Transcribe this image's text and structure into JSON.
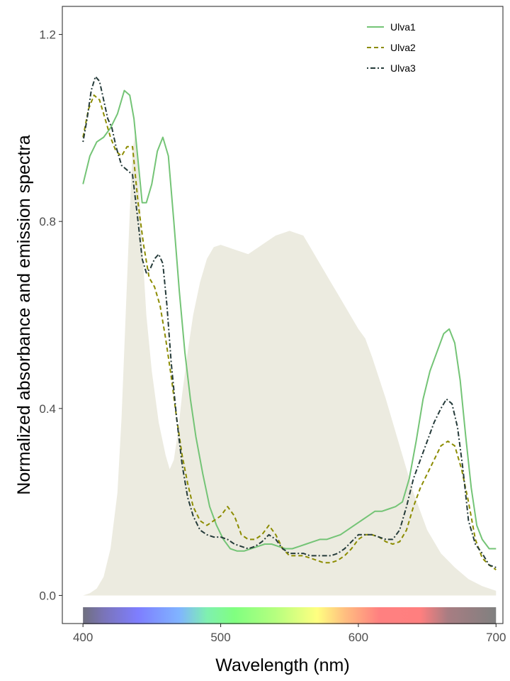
{
  "chart_data": {
    "type": "line",
    "xlabel": "Wavelength (nm)",
    "ylabel": "Normalized absorbance and emission spectra",
    "xlim": [
      385,
      705
    ],
    "ylim": [
      -0.06,
      1.26
    ],
    "x_ticks": [
      400,
      500,
      600,
      700
    ],
    "y_ticks": [
      0.0,
      0.4,
      0.8,
      1.2
    ],
    "x_tick_labels": [
      "400",
      "500",
      "600",
      "700"
    ],
    "y_tick_labels": [
      "0.0",
      "0.4",
      "0.8",
      "1.2"
    ],
    "grid": false,
    "legend_position": "top-right",
    "emission_spectrum": {
      "color": "#ecebe0",
      "x": [
        400,
        405,
        410,
        415,
        420,
        425,
        428,
        431,
        434,
        436,
        438,
        440,
        443,
        446,
        450,
        455,
        460,
        463,
        466,
        469,
        472,
        476,
        480,
        485,
        490,
        495,
        500,
        505,
        510,
        515,
        520,
        525,
        530,
        535,
        540,
        545,
        550,
        555,
        560,
        565,
        570,
        575,
        580,
        585,
        590,
        595,
        600,
        605,
        610,
        620,
        630,
        640,
        650,
        660,
        670,
        680,
        690,
        700
      ],
      "y": [
        0.0,
        0.005,
        0.015,
        0.04,
        0.1,
        0.22,
        0.38,
        0.6,
        0.82,
        0.95,
        0.99,
        0.92,
        0.75,
        0.6,
        0.48,
        0.37,
        0.3,
        0.27,
        0.29,
        0.35,
        0.43,
        0.52,
        0.6,
        0.67,
        0.72,
        0.745,
        0.75,
        0.745,
        0.74,
        0.735,
        0.73,
        0.74,
        0.75,
        0.76,
        0.77,
        0.775,
        0.78,
        0.775,
        0.77,
        0.745,
        0.72,
        0.695,
        0.67,
        0.645,
        0.62,
        0.595,
        0.57,
        0.55,
        0.51,
        0.42,
        0.32,
        0.22,
        0.14,
        0.09,
        0.06,
        0.035,
        0.02,
        0.01
      ]
    },
    "series": [
      {
        "name": "Ulva1",
        "color": "#74c476",
        "dash": "solid",
        "x": [
          400,
          405,
          410,
          415,
          420,
          425,
          430,
          434,
          437,
          440,
          443,
          446,
          450,
          454,
          458,
          462,
          466,
          470,
          474,
          478,
          482,
          487,
          492,
          497,
          502,
          507,
          512,
          517,
          522,
          527,
          532,
          537,
          542,
          547,
          552,
          557,
          562,
          567,
          572,
          577,
          582,
          587,
          592,
          597,
          602,
          607,
          612,
          617,
          622,
          627,
          632,
          637,
          642,
          647,
          652,
          657,
          662,
          666,
          670,
          674,
          678,
          682,
          686,
          690,
          695,
          700
        ],
        "y": [
          0.88,
          0.94,
          0.97,
          0.98,
          1.0,
          1.03,
          1.08,
          1.07,
          1.02,
          0.93,
          0.84,
          0.84,
          0.88,
          0.95,
          0.98,
          0.94,
          0.8,
          0.65,
          0.52,
          0.42,
          0.34,
          0.26,
          0.19,
          0.15,
          0.12,
          0.1,
          0.095,
          0.095,
          0.1,
          0.105,
          0.11,
          0.11,
          0.105,
          0.1,
          0.1,
          0.105,
          0.11,
          0.115,
          0.12,
          0.12,
          0.125,
          0.13,
          0.14,
          0.15,
          0.16,
          0.17,
          0.18,
          0.18,
          0.185,
          0.19,
          0.2,
          0.25,
          0.33,
          0.42,
          0.48,
          0.52,
          0.56,
          0.57,
          0.54,
          0.46,
          0.34,
          0.23,
          0.15,
          0.12,
          0.1,
          0.1
        ]
      },
      {
        "name": "Ulva2",
        "color": "#8c8c00",
        "dash": "dashed",
        "x": [
          400,
          404,
          408,
          412,
          416,
          420,
          424,
          428,
          432,
          436,
          440,
          444,
          448,
          452,
          456,
          460,
          464,
          468,
          472,
          476,
          480,
          485,
          490,
          495,
          500,
          505,
          510,
          515,
          520,
          525,
          530,
          535,
          540,
          545,
          550,
          555,
          560,
          565,
          570,
          575,
          580,
          585,
          590,
          595,
          600,
          605,
          610,
          615,
          620,
          625,
          630,
          635,
          640,
          645,
          650,
          655,
          660,
          665,
          670,
          675,
          680,
          685,
          690,
          695,
          700
        ],
        "y": [
          0.98,
          1.04,
          1.07,
          1.06,
          1.02,
          0.98,
          0.95,
          0.94,
          0.96,
          0.96,
          0.84,
          0.75,
          0.68,
          0.66,
          0.62,
          0.55,
          0.47,
          0.38,
          0.3,
          0.24,
          0.19,
          0.16,
          0.15,
          0.16,
          0.17,
          0.19,
          0.17,
          0.13,
          0.12,
          0.12,
          0.13,
          0.15,
          0.13,
          0.1,
          0.085,
          0.085,
          0.085,
          0.08,
          0.075,
          0.07,
          0.07,
          0.075,
          0.085,
          0.1,
          0.12,
          0.13,
          0.13,
          0.125,
          0.115,
          0.11,
          0.115,
          0.14,
          0.19,
          0.23,
          0.26,
          0.29,
          0.32,
          0.33,
          0.32,
          0.27,
          0.2,
          0.12,
          0.08,
          0.065,
          0.055
        ]
      },
      {
        "name": "Ulva3",
        "color": "#253b3a",
        "dash": "dotdash",
        "x": [
          400,
          403,
          406,
          409,
          412,
          415,
          418,
          421,
          424,
          428,
          432,
          436,
          440,
          443,
          446,
          449,
          452,
          455,
          458,
          461,
          464,
          468,
          472,
          476,
          480,
          485,
          490,
          495,
          500,
          505,
          510,
          515,
          520,
          525,
          530,
          535,
          540,
          545,
          550,
          555,
          560,
          565,
          570,
          575,
          580,
          585,
          590,
          595,
          600,
          605,
          610,
          615,
          620,
          625,
          630,
          635,
          640,
          645,
          650,
          655,
          660,
          664,
          668,
          672,
          676,
          680,
          685,
          690,
          695,
          700
        ],
        "y": [
          0.97,
          1.02,
          1.08,
          1.11,
          1.1,
          1.06,
          1.02,
          1.0,
          0.96,
          0.92,
          0.91,
          0.9,
          0.8,
          0.72,
          0.69,
          0.7,
          0.72,
          0.73,
          0.71,
          0.62,
          0.5,
          0.38,
          0.28,
          0.21,
          0.17,
          0.14,
          0.13,
          0.125,
          0.125,
          0.12,
          0.11,
          0.105,
          0.1,
          0.105,
          0.115,
          0.13,
          0.12,
          0.1,
          0.09,
          0.09,
          0.09,
          0.085,
          0.085,
          0.085,
          0.085,
          0.09,
          0.1,
          0.115,
          0.13,
          0.13,
          0.13,
          0.125,
          0.12,
          0.12,
          0.14,
          0.19,
          0.25,
          0.29,
          0.33,
          0.37,
          0.4,
          0.42,
          0.41,
          0.36,
          0.27,
          0.16,
          0.11,
          0.09,
          0.065,
          0.06
        ]
      }
    ],
    "color_bar": {
      "x_range": [
        400,
        700
      ],
      "stops": [
        {
          "nm": 400,
          "color": "#6f6f7e"
        },
        {
          "nm": 415,
          "color": "#7a74b8"
        },
        {
          "nm": 440,
          "color": "#7e7eff"
        },
        {
          "nm": 470,
          "color": "#80b4ff"
        },
        {
          "nm": 490,
          "color": "#7ff0b0"
        },
        {
          "nm": 510,
          "color": "#80ff80"
        },
        {
          "nm": 540,
          "color": "#b6ff7f"
        },
        {
          "nm": 570,
          "color": "#ffff80"
        },
        {
          "nm": 590,
          "color": "#ffbf80"
        },
        {
          "nm": 615,
          "color": "#ff8080"
        },
        {
          "nm": 645,
          "color": "#ff7f7f"
        },
        {
          "nm": 665,
          "color": "#a87d82"
        },
        {
          "nm": 700,
          "color": "#808080"
        }
      ]
    }
  }
}
